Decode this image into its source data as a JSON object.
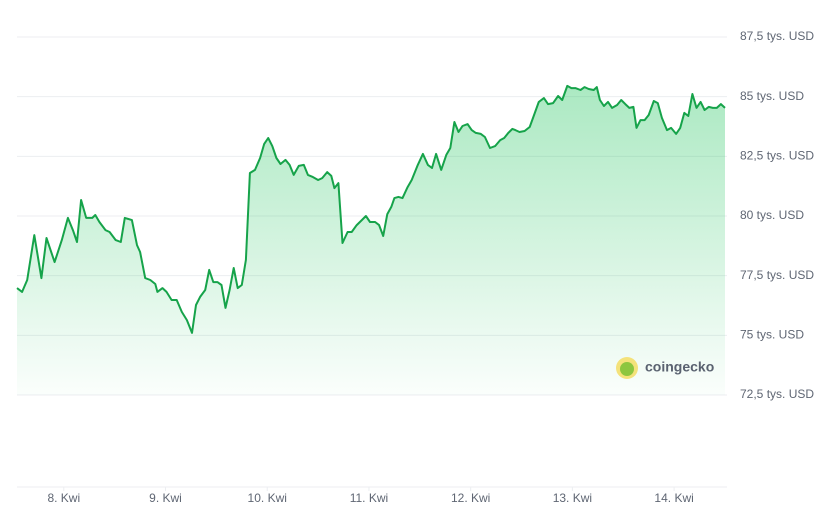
{
  "chart_data": {
    "type": "area",
    "color": "#16a34a",
    "watermark": "coingecko",
    "xlim": [
      7.54,
      14.52
    ],
    "ylim": [
      72.5,
      87.5
    ],
    "grid": true,
    "yticks": [
      {
        "value": 87.5,
        "label": "87,5 tys. USD"
      },
      {
        "value": 85,
        "label": "85 tys. USD"
      },
      {
        "value": 82.5,
        "label": "82,5 tys. USD"
      },
      {
        "value": 80,
        "label": "80 tys. USD"
      },
      {
        "value": 77.5,
        "label": "77,5 tys. USD"
      },
      {
        "value": 75,
        "label": "75 tys. USD"
      },
      {
        "value": 72.5,
        "label": "72,5 tys. USD"
      }
    ],
    "xticks": [
      {
        "value": 8,
        "label": "8. Kwi"
      },
      {
        "value": 9,
        "label": "9. Kwi"
      },
      {
        "value": 10,
        "label": "10. Kwi"
      },
      {
        "value": 11,
        "label": "11. Kwi"
      },
      {
        "value": 12,
        "label": "12. Kwi"
      },
      {
        "value": 13,
        "label": "13. Kwi"
      },
      {
        "value": 14,
        "label": "14. Kwi"
      }
    ],
    "x": [
      7.54,
      7.59,
      7.64,
      7.71,
      7.78,
      7.83,
      7.91,
      7.98,
      8.04,
      8.09,
      8.13,
      8.17,
      8.22,
      8.28,
      8.31,
      8.35,
      8.41,
      8.45,
      8.51,
      8.56,
      8.6,
      8.67,
      8.72,
      8.75,
      8.8,
      8.85,
      8.9,
      8.92,
      8.97,
      9.01,
      9.06,
      9.11,
      9.16,
      9.21,
      9.26,
      9.3,
      9.34,
      9.39,
      9.43,
      9.47,
      9.51,
      9.55,
      9.59,
      9.63,
      9.67,
      9.71,
      9.75,
      9.79,
      9.83,
      9.88,
      9.93,
      9.97,
      10.01,
      10.05,
      10.09,
      10.13,
      10.18,
      10.22,
      10.26,
      10.31,
      10.36,
      10.4,
      10.45,
      10.5,
      10.54,
      10.59,
      10.63,
      10.66,
      10.7,
      10.74,
      10.79,
      10.83,
      10.88,
      10.93,
      10.97,
      11.01,
      11.06,
      11.1,
      11.14,
      11.18,
      11.22,
      11.25,
      11.29,
      11.33,
      11.38,
      11.42,
      11.48,
      11.53,
      11.58,
      11.62,
      11.66,
      11.71,
      11.76,
      11.8,
      11.84,
      11.88,
      11.92,
      11.97,
      12.01,
      12.05,
      12.1,
      12.14,
      12.19,
      12.24,
      12.29,
      12.33,
      12.37,
      12.41,
      12.44,
      12.48,
      12.53,
      12.58,
      12.62,
      12.67,
      12.72,
      12.76,
      12.81,
      12.86,
      12.9,
      12.95,
      12.99,
      13.03,
      13.08,
      13.12,
      13.16,
      13.21,
      13.24,
      13.27,
      13.31,
      13.35,
      13.39,
      13.44,
      13.48,
      13.52,
      13.56,
      13.6,
      13.63,
      13.67,
      13.71,
      13.75,
      13.8,
      13.84,
      13.88,
      13.93,
      13.97,
      14.02,
      14.06,
      14.1,
      14.14,
      14.18,
      14.22,
      14.26,
      14.3,
      14.34,
      14.38,
      14.42,
      14.46,
      14.5
    ],
    "values": [
      76.98,
      76.82,
      77.32,
      79.2,
      77.4,
      79.08,
      78.07,
      78.99,
      79.92,
      79.41,
      78.91,
      80.67,
      79.92,
      79.92,
      80.04,
      79.75,
      79.41,
      79.33,
      78.99,
      78.91,
      79.92,
      79.83,
      78.78,
      78.49,
      77.4,
      77.32,
      77.15,
      76.82,
      76.98,
      76.82,
      76.48,
      76.48,
      75.98,
      75.64,
      75.1,
      76.27,
      76.61,
      76.9,
      77.74,
      77.23,
      77.23,
      77.11,
      76.15,
      76.9,
      77.82,
      76.98,
      77.11,
      78.16,
      81.8,
      81.93,
      82.43,
      83.02,
      83.27,
      82.93,
      82.43,
      82.18,
      82.35,
      82.14,
      81.72,
      82.1,
      82.14,
      81.72,
      81.63,
      81.51,
      81.59,
      81.84,
      81.68,
      81.17,
      81.38,
      78.87,
      79.33,
      79.33,
      79.62,
      79.83,
      80.0,
      79.75,
      79.75,
      79.62,
      79.16,
      80.08,
      80.38,
      80.75,
      80.8,
      80.75,
      81.21,
      81.51,
      82.14,
      82.6,
      82.14,
      82.01,
      82.6,
      81.93,
      82.56,
      82.85,
      83.94,
      83.52,
      83.77,
      83.85,
      83.6,
      83.48,
      83.44,
      83.31,
      82.85,
      82.93,
      83.18,
      83.27,
      83.48,
      83.65,
      83.6,
      83.52,
      83.56,
      83.73,
      84.19,
      84.78,
      84.94,
      84.69,
      84.73,
      85.03,
      84.86,
      85.45,
      85.36,
      85.36,
      85.28,
      85.4,
      85.32,
      85.28,
      85.4,
      84.86,
      84.61,
      84.78,
      84.53,
      84.65,
      84.86,
      84.69,
      84.53,
      84.57,
      83.69,
      84.02,
      84.02,
      84.23,
      84.82,
      84.73,
      84.11,
      83.6,
      83.69,
      83.44,
      83.69,
      84.32,
      84.19,
      85.11,
      84.53,
      84.78,
      84.44,
      84.57,
      84.53,
      84.53,
      84.69,
      84.53
    ]
  }
}
